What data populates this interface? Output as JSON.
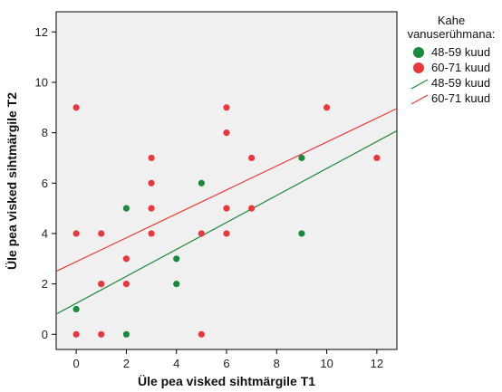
{
  "chart_data": {
    "type": "scatter",
    "xlabel": "Üle pea visked sihtmärgile T1",
    "ylabel": "Üle pea visked sihtmärgile T2",
    "xlim": [
      -0.8,
      12.8
    ],
    "ylim": [
      -0.6,
      12.8
    ],
    "xticks": [
      0,
      2,
      4,
      6,
      8,
      10,
      12
    ],
    "yticks": [
      0,
      2,
      4,
      6,
      8,
      10,
      12
    ],
    "grid": false,
    "legend_position": "right",
    "legend_title": "Kahe vanuserühmana:",
    "series": [
      {
        "name": "48-59 kuud",
        "color": "#1a8a3c",
        "points": [
          [
            0,
            1
          ],
          [
            1,
            2
          ],
          [
            2,
            5
          ],
          [
            2,
            0
          ],
          [
            4,
            3
          ],
          [
            4,
            2
          ],
          [
            5,
            6
          ],
          [
            9,
            7
          ],
          [
            9,
            4
          ]
        ],
        "fit": {
          "intercept": 1.23,
          "slope": 0.535,
          "label": "48-59 kuud"
        }
      },
      {
        "name": "60-71 kuud",
        "color": "#e8383d",
        "points": [
          [
            0,
            9
          ],
          [
            0,
            4
          ],
          [
            0,
            0
          ],
          [
            1,
            4
          ],
          [
            1,
            2
          ],
          [
            1,
            0
          ],
          [
            2,
            3
          ],
          [
            2,
            2
          ],
          [
            3,
            7
          ],
          [
            3,
            6
          ],
          [
            3,
            5
          ],
          [
            3,
            4
          ],
          [
            5,
            4
          ],
          [
            5,
            0
          ],
          [
            6,
            9
          ],
          [
            6,
            8
          ],
          [
            6,
            5
          ],
          [
            6,
            4
          ],
          [
            7,
            7
          ],
          [
            7,
            5
          ],
          [
            10,
            9
          ],
          [
            12,
            7
          ]
        ],
        "fit": {
          "intercept": 2.88,
          "slope": 0.475,
          "label": "60-71 kuud"
        }
      }
    ]
  }
}
